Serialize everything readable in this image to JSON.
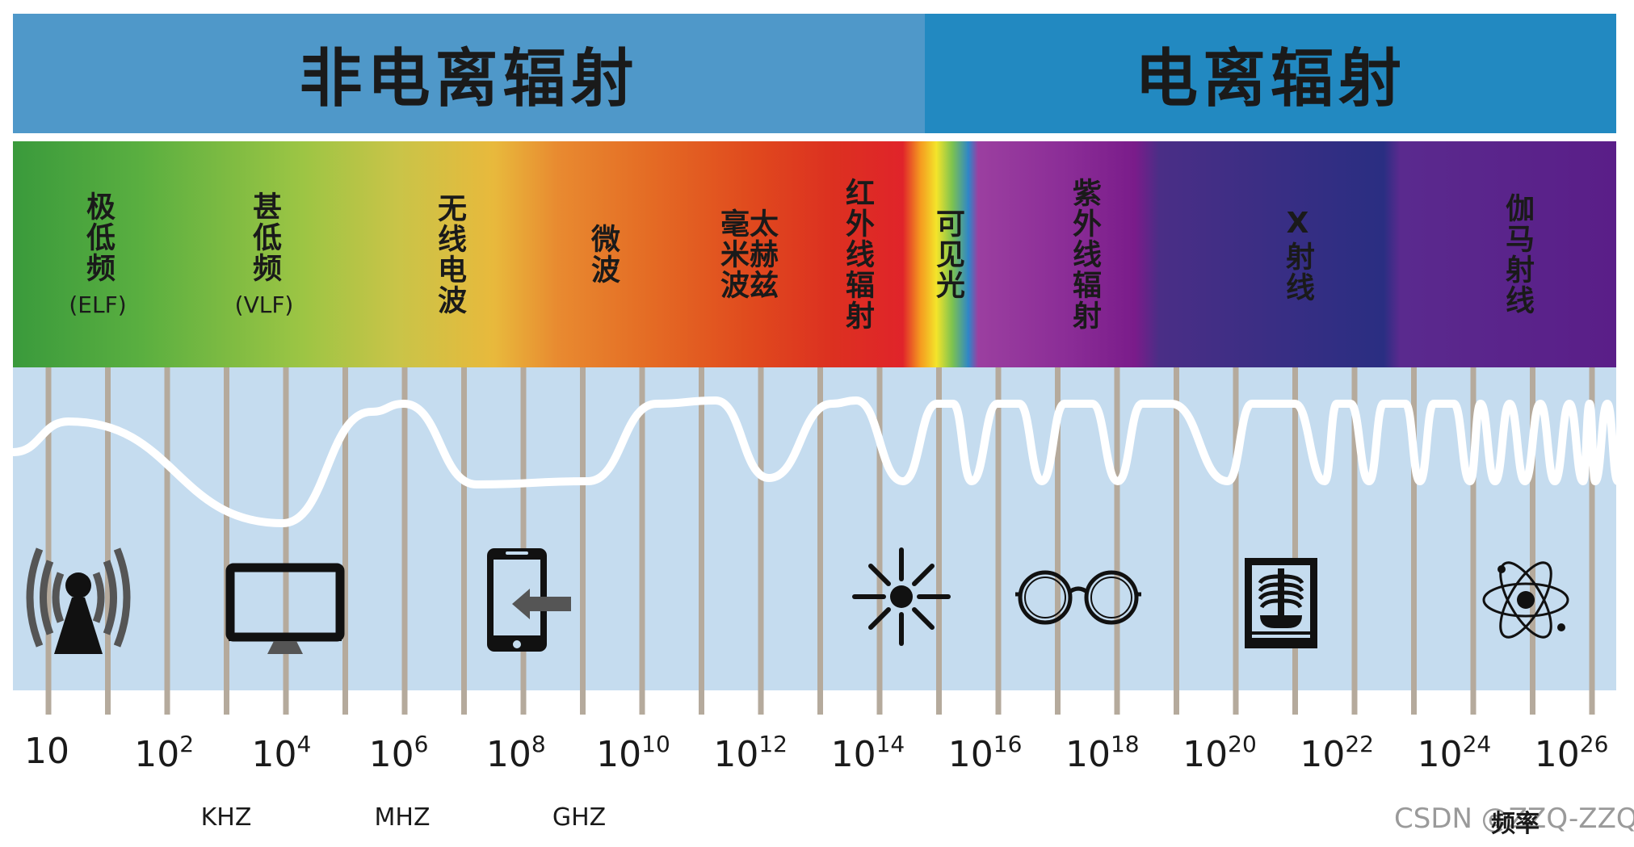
{
  "header": {
    "non_ionizing": "非电离辐射",
    "ionizing": "电离辐射"
  },
  "bands": [
    {
      "label": "极低频",
      "sub": "(ELF)"
    },
    {
      "label": "甚低频",
      "sub": "(VLF)"
    },
    {
      "label": "无线电波"
    },
    {
      "label": "微波"
    },
    {
      "label_a": "太赫兹",
      "label_b": "毫米波"
    },
    {
      "label": "红外线辐射"
    },
    {
      "label": "可见光"
    },
    {
      "label": "紫外线辐射"
    },
    {
      "label": "X射线"
    },
    {
      "label": "伽马射线"
    }
  ],
  "frequency_ticks": [
    {
      "base": "10",
      "exp": ""
    },
    {
      "base": "10",
      "exp": "2"
    },
    {
      "base": "10",
      "exp": "4"
    },
    {
      "base": "10",
      "exp": "6"
    },
    {
      "base": "10",
      "exp": "8"
    },
    {
      "base": "10",
      "exp": "10"
    },
    {
      "base": "10",
      "exp": "12"
    },
    {
      "base": "10",
      "exp": "14"
    },
    {
      "base": "10",
      "exp": "16"
    },
    {
      "base": "10",
      "exp": "18"
    },
    {
      "base": "10",
      "exp": "20"
    },
    {
      "base": "10",
      "exp": "22"
    },
    {
      "base": "10",
      "exp": "24"
    },
    {
      "base": "10",
      "exp": "26"
    }
  ],
  "units": [
    "KHZ",
    "MHZ",
    "GHZ"
  ],
  "axis_label": "频率",
  "watermark": "CSDN @ZZQ-ZZQ",
  "icons": [
    "antenna-icon",
    "monitor-icon",
    "smartphone-icon",
    "sun-icon",
    "glasses-icon",
    "xray-icon",
    "atom-icon"
  ],
  "colors": {
    "non_ionizing_header": "#4f98c9",
    "ionizing_header": "#2289c1",
    "panel": "#c5dcef",
    "wave": "#ffffff",
    "tick": "#b5aa9c"
  }
}
